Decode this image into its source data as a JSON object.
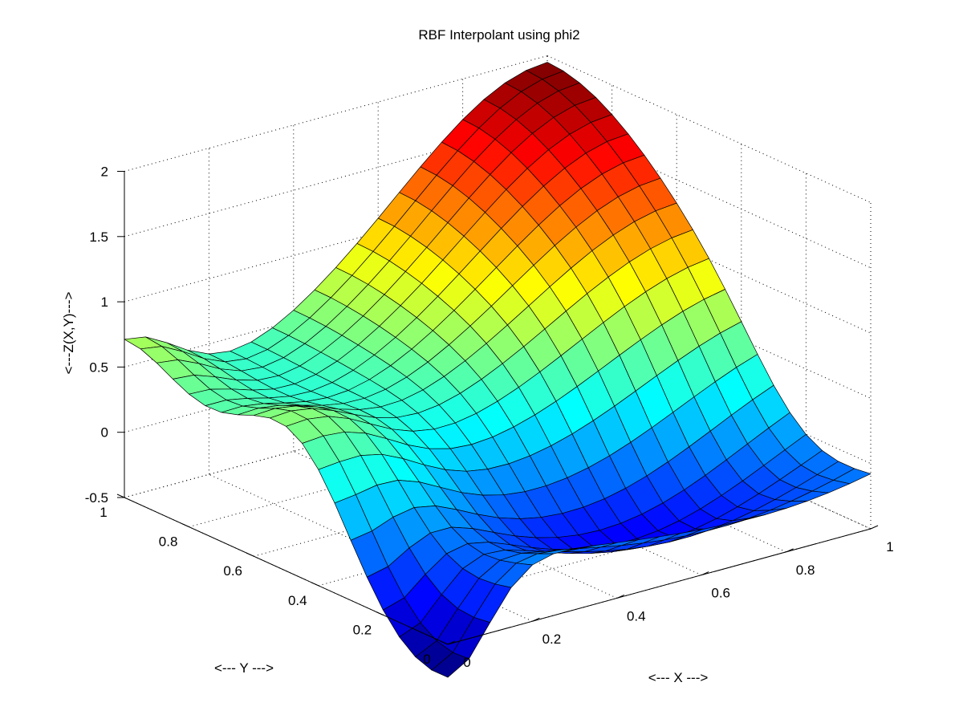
{
  "chart_data": {
    "type": "surface",
    "title": "RBF Interpolant using phi2",
    "xlabel": "<--- X --->",
    "ylabel": "<--- Y --->",
    "zlabel": "<---Z(X,Y)--->",
    "xlim": [
      0,
      1
    ],
    "ylim": [
      0,
      1
    ],
    "zlim": [
      -0.5,
      2
    ],
    "x_ticks": [
      "0",
      "0.2",
      "0.4",
      "0.6",
      "0.8",
      "1"
    ],
    "y_ticks": [
      "0",
      "0.2",
      "0.4",
      "0.6",
      "0.8",
      "1"
    ],
    "z_ticks": [
      "-0.5",
      "0",
      "0.5",
      "1",
      "1.5",
      "2"
    ],
    "x_tick_values": [
      0,
      0.2,
      0.4,
      0.6,
      0.8,
      1
    ],
    "y_tick_values": [
      0,
      0.2,
      0.4,
      0.6,
      0.8,
      1
    ],
    "z_tick_values": [
      -0.5,
      0,
      0.5,
      1,
      1.5,
      2
    ],
    "grid": true,
    "colormap": "jet",
    "mesh_size": [
      21,
      21
    ],
    "corner_values": {
      "x0_y0": -0.6,
      "x1_y0": -0.25,
      "x0_y1": 0.65,
      "x1_y1": 2.0
    },
    "description_points": [
      {
        "x": 1.0,
        "y": 1.0,
        "z": 2.0
      },
      {
        "x": 0.0,
        "y": 1.0,
        "z": 0.65
      },
      {
        "x": 1.0,
        "y": 0.0,
        "z": -0.25
      },
      {
        "x": 0.0,
        "y": 0.0,
        "z": -0.6
      },
      {
        "x": 0.0,
        "y": 0.5,
        "z": 0.5
      },
      {
        "x": 0.0,
        "y": 0.8,
        "z": 0.2
      }
    ]
  }
}
